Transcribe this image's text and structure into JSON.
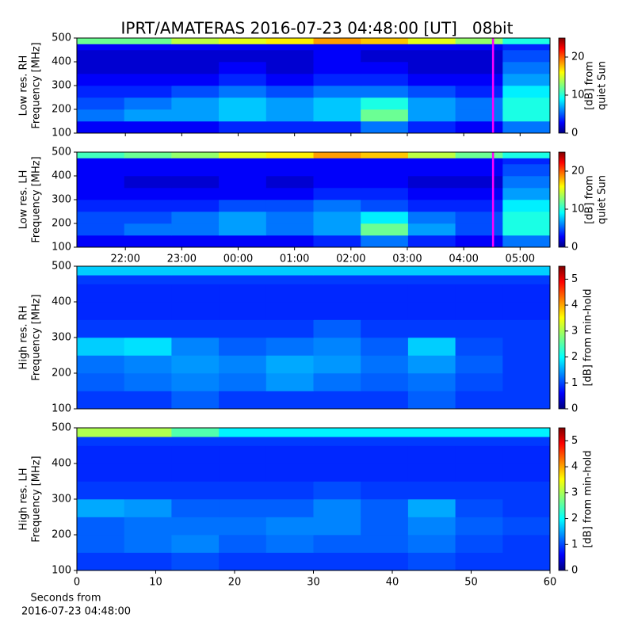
{
  "title": "IPRT/AMATERAS 2016-07-23 04:48:00 [UT]   08bit",
  "chart_data": [
    {
      "type": "heatmap",
      "ylabel": [
        "Low res. RH",
        "Frequency [MHz]"
      ],
      "xlim": [
        21.14,
        29.53
      ],
      "ylim": [
        100,
        500
      ],
      "yticks": [
        100,
        200,
        300,
        400,
        500
      ],
      "y_edges": [
        100,
        150,
        200,
        250,
        300,
        350,
        400,
        450,
        475,
        500
      ],
      "z": [
        [
          3,
          3,
          3,
          4,
          4,
          4,
          6,
          4,
          3,
          6
        ],
        [
          6,
          7,
          7,
          8,
          7,
          8,
          12,
          7,
          6,
          10
        ],
        [
          5,
          6,
          7,
          8,
          7,
          8,
          10,
          7,
          6,
          10
        ],
        [
          4,
          4,
          5,
          6,
          5,
          6,
          6,
          5,
          4,
          9
        ],
        [
          3,
          3,
          3,
          4,
          3,
          4,
          4,
          3,
          3,
          7
        ],
        [
          2,
          2,
          2,
          3,
          2,
          3,
          3,
          2,
          2,
          6
        ],
        [
          2,
          2,
          2,
          2,
          2,
          3,
          2,
          2,
          2,
          5
        ],
        [
          3,
          3,
          3,
          3,
          3,
          3,
          3,
          3,
          3,
          4
        ],
        [
          12,
          12,
          14,
          15,
          16,
          18,
          17,
          15,
          13,
          10
        ]
      ],
      "marker": {
        "x": 28.52,
        "color": "#ff00ff"
      },
      "colorbar": {
        "label": [
          "[dB] from",
          "quiet Sun"
        ],
        "lim": [
          0,
          25
        ],
        "ticks": [
          0,
          10,
          20
        ]
      }
    },
    {
      "type": "heatmap",
      "ylabel": [
        "Low res. LH",
        "Frequency [MHz]"
      ],
      "xlim": [
        21.14,
        29.53
      ],
      "ylim": [
        100,
        500
      ],
      "yticks": [
        100,
        200,
        300,
        400,
        500
      ],
      "xticks": [
        {
          "value": 22,
          "label": "22:00"
        },
        {
          "value": 23,
          "label": "23:00"
        },
        {
          "value": 24,
          "label": "00:00"
        },
        {
          "value": 25,
          "label": "01:00"
        },
        {
          "value": 26,
          "label": "02:00"
        },
        {
          "value": 27,
          "label": "03:00"
        },
        {
          "value": 28,
          "label": "04:00"
        },
        {
          "value": 29,
          "label": "05:00"
        }
      ],
      "y_edges": [
        100,
        150,
        200,
        250,
        300,
        350,
        400,
        450,
        475,
        500
      ],
      "z": [
        [
          3,
          3,
          3,
          3,
          3,
          4,
          6,
          4,
          3,
          6
        ],
        [
          5,
          6,
          6,
          7,
          6,
          7,
          12,
          7,
          5,
          10
        ],
        [
          5,
          5,
          6,
          7,
          6,
          7,
          9,
          6,
          5,
          10
        ],
        [
          4,
          4,
          4,
          5,
          5,
          6,
          5,
          4,
          4,
          9
        ],
        [
          3,
          3,
          3,
          3,
          3,
          4,
          4,
          3,
          3,
          7
        ],
        [
          3,
          2,
          2,
          3,
          2,
          3,
          3,
          2,
          2,
          6
        ],
        [
          3,
          3,
          3,
          3,
          3,
          3,
          3,
          3,
          3,
          5
        ],
        [
          3,
          3,
          3,
          3,
          3,
          3,
          3,
          3,
          3,
          4
        ],
        [
          11,
          12,
          13,
          15,
          16,
          18,
          17,
          14,
          12,
          10
        ]
      ],
      "marker": {
        "x": 28.52,
        "color": "#ff00ff"
      },
      "colorbar": {
        "label": [
          "[dB] from",
          "quiet Sun"
        ],
        "lim": [
          0,
          25
        ],
        "ticks": [
          0,
          10,
          20
        ]
      }
    },
    {
      "type": "heatmap",
      "ylabel": [
        "High res. RH",
        "Frequency [MHz]"
      ],
      "xlim": [
        0,
        60
      ],
      "ylim": [
        100,
        500
      ],
      "yticks": [
        100,
        200,
        300,
        400,
        500
      ],
      "y_edges": [
        100,
        150,
        200,
        250,
        300,
        350,
        400,
        450,
        475,
        500
      ],
      "z": [
        [
          1,
          1,
          1.2,
          1,
          1,
          1,
          1,
          1.2,
          1,
          1
        ],
        [
          1.2,
          1.3,
          1.4,
          1.3,
          1.5,
          1.3,
          1.2,
          1.3,
          1.1,
          1
        ],
        [
          1.3,
          1.4,
          1.5,
          1.4,
          1.6,
          1.5,
          1.3,
          1.5,
          1.2,
          1
        ],
        [
          1.8,
          1.9,
          1.4,
          1.2,
          1.3,
          1.4,
          1.2,
          1.8,
          1.1,
          1
        ],
        [
          1,
          1,
          1,
          1,
          1,
          1.2,
          1,
          1,
          1,
          1
        ],
        [
          0.9,
          0.9,
          0.9,
          0.9,
          0.9,
          0.9,
          0.9,
          0.9,
          0.9,
          0.9
        ],
        [
          0.9,
          0.9,
          0.9,
          0.9,
          0.9,
          0.9,
          0.9,
          0.9,
          0.9,
          0.9
        ],
        [
          1,
          1,
          1,
          1,
          1,
          1,
          1,
          1,
          1,
          1
        ],
        [
          1.8,
          1.8,
          1.8,
          1.8,
          1.8,
          1.8,
          1.8,
          1.8,
          1.8,
          1.8
        ]
      ],
      "colorbar": {
        "label": [
          "[dB] from min-hold"
        ],
        "lim": [
          0,
          5.5
        ],
        "ticks": [
          0,
          1,
          2,
          3,
          4,
          5
        ]
      }
    },
    {
      "type": "heatmap",
      "ylabel": [
        "High res. LH",
        "Frequency [MHz]"
      ],
      "xlim": [
        0,
        60
      ],
      "ylim": [
        100,
        500
      ],
      "yticks": [
        100,
        200,
        300,
        400,
        500
      ],
      "xticks": [
        0,
        10,
        20,
        30,
        40,
        50,
        60
      ],
      "xlabel": [
        "Seconds from",
        "2016-07-23 04:48:00"
      ],
      "y_edges": [
        100,
        150,
        200,
        250,
        300,
        350,
        400,
        450,
        475,
        500
      ],
      "z": [
        [
          1,
          1,
          1.1,
          1,
          1,
          1,
          1,
          1.1,
          1,
          1
        ],
        [
          1.2,
          1.3,
          1.4,
          1.2,
          1.3,
          1.2,
          1.2,
          1.3,
          1.1,
          1
        ],
        [
          1.2,
          1.3,
          1.3,
          1.3,
          1.4,
          1.4,
          1.2,
          1.4,
          1.2,
          1.1
        ],
        [
          1.6,
          1.5,
          1.2,
          1.2,
          1.2,
          1.4,
          1.2,
          1.6,
          1.1,
          1
        ],
        [
          1,
          1,
          1,
          1,
          1,
          1.1,
          1,
          1,
          1,
          1
        ],
        [
          0.9,
          0.9,
          0.9,
          0.9,
          0.9,
          0.9,
          0.9,
          0.9,
          0.9,
          0.9
        ],
        [
          0.9,
          0.9,
          0.9,
          0.9,
          0.9,
          0.9,
          0.9,
          0.9,
          0.9,
          0.9
        ],
        [
          1,
          1,
          1,
          1,
          1,
          1,
          1,
          1,
          1,
          1
        ],
        [
          3,
          3,
          2.5,
          2,
          2,
          2,
          2,
          2,
          2,
          2
        ]
      ],
      "colorbar": {
        "label": [
          "[dB] from min-hold"
        ],
        "lim": [
          0,
          5.5
        ],
        "ticks": [
          0,
          1,
          2,
          3,
          4,
          5
        ]
      }
    }
  ]
}
